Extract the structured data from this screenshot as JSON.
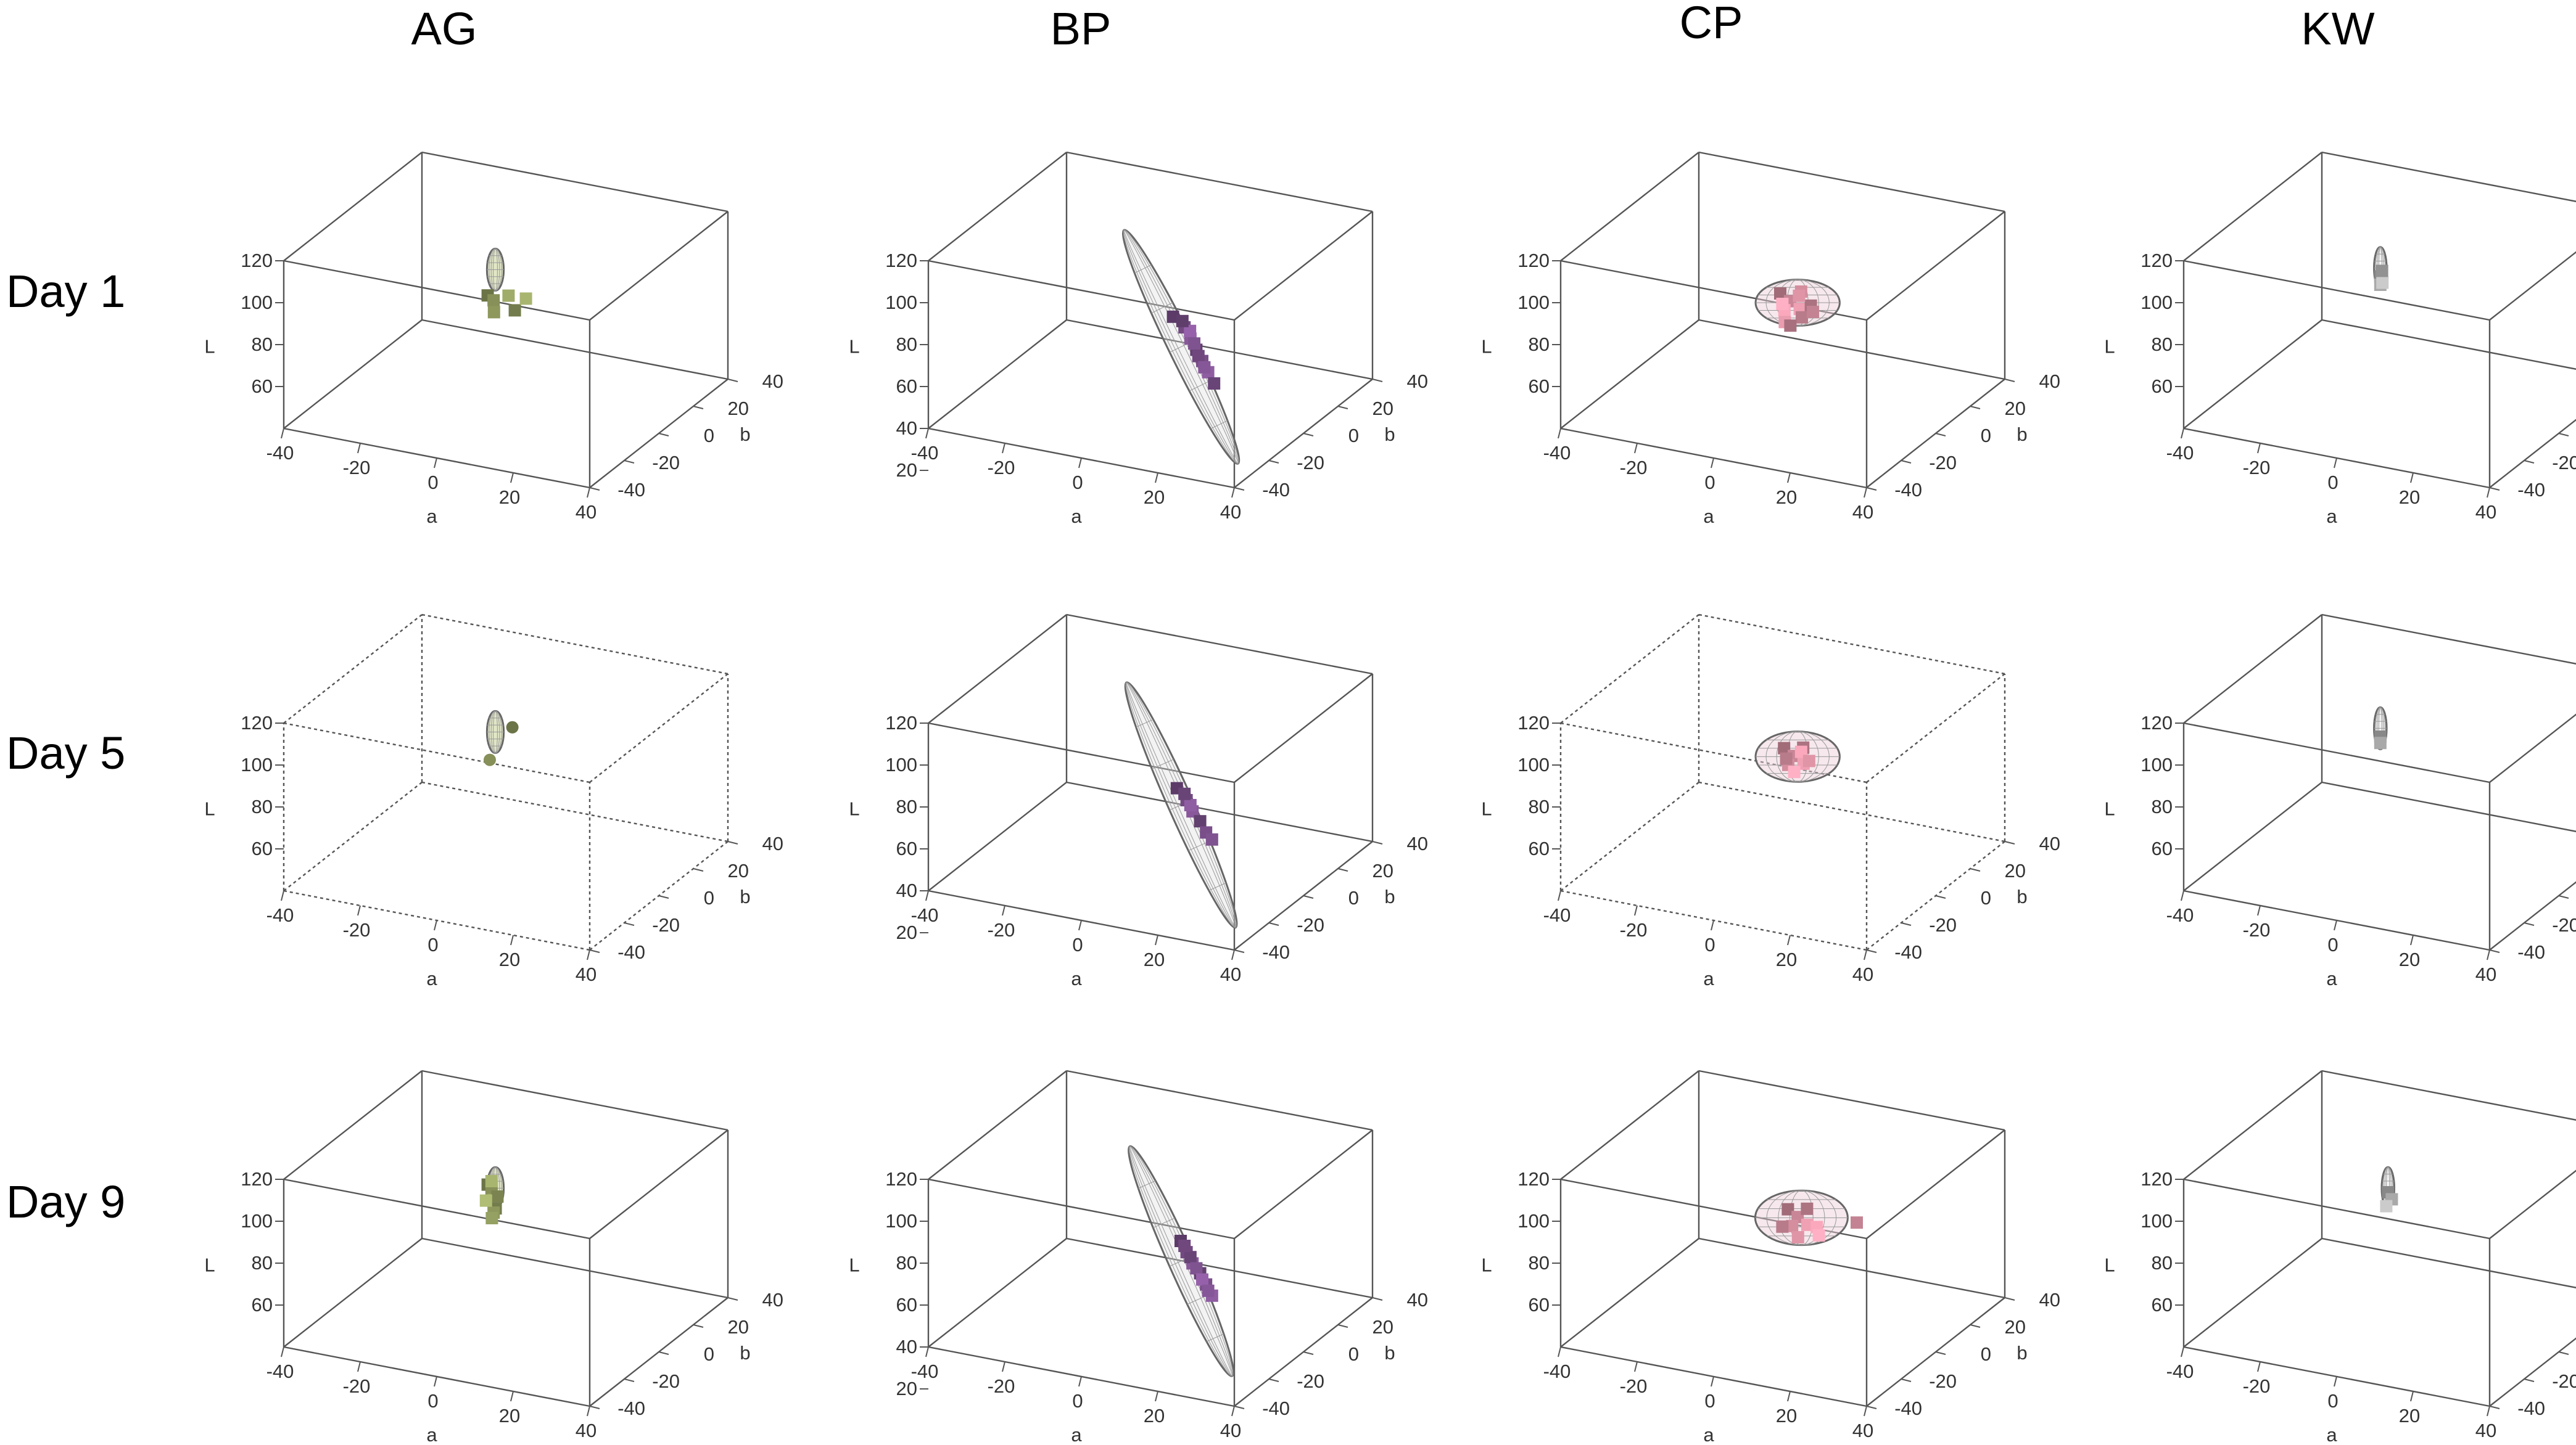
{
  "chart_data": {
    "type": "scatter3d",
    "title": "",
    "columns": [
      "AG",
      "BP",
      "CP",
      "KW"
    ],
    "rows": [
      "Day 1",
      "Day 5",
      "Day 9"
    ],
    "axes": {
      "x": {
        "label": "a",
        "ticks": [
          "-40",
          "-20",
          "0",
          "20",
          "40"
        ],
        "range": [
          -40,
          40
        ]
      },
      "y": {
        "label": "b",
        "ticks": [
          "-40",
          "-20",
          "0",
          "20",
          "40"
        ],
        "range": [
          -40,
          40
        ]
      },
      "z": {
        "label": "L",
        "ticks": [
          "60",
          "80",
          "100",
          "120"
        ],
        "range": [
          40,
          120
        ]
      },
      "z_ticks_bp": [
        "20",
        "40",
        "60",
        "80",
        "100",
        "120"
      ]
    },
    "panels": [
      {
        "col": "AG",
        "row": "Day 1",
        "color": "#8f9a5e",
        "ellipse": {
          "a": -5,
          "b": 5,
          "L": 99,
          "ra": 2,
          "rb": 2,
          "rL": 10,
          "tilt": 0
        },
        "points": [
          [
            -7,
            5,
            86
          ],
          [
            -5,
            4,
            85
          ],
          [
            -2,
            6,
            87
          ],
          [
            1,
            3,
            83
          ],
          [
            -4,
            2,
            81
          ],
          [
            3,
            5,
            88
          ]
        ]
      },
      {
        "col": "BP",
        "row": "Day 1",
        "color": "#7a4f8a",
        "ellipse": {
          "a": 8,
          "b": 0,
          "L": 70,
          "ra": 3,
          "rb": 3,
          "rL": 62,
          "tilt": -26
        },
        "points": [
          [
            5,
            2,
            82
          ],
          [
            8,
            2,
            78
          ],
          [
            10,
            1,
            74
          ],
          [
            12,
            0,
            70
          ],
          [
            14,
            -1,
            66
          ],
          [
            16,
            -2,
            62
          ],
          [
            18,
            -3,
            58
          ],
          [
            11,
            1,
            72
          ],
          [
            9,
            3,
            76
          ],
          [
            13,
            -1,
            68
          ],
          [
            15,
            -2,
            64
          ],
          [
            7,
            3,
            80
          ]
        ]
      },
      {
        "col": "CP",
        "row": "Day 1",
        "color": "#d68fa0",
        "ellipse": {
          "a": 3,
          "b": 2,
          "L": 88,
          "ra": 10,
          "rb": 9,
          "rL": 11,
          "tilt": 0
        },
        "points": [
          [
            -2,
            3,
            90
          ],
          [
            1,
            2,
            88
          ],
          [
            4,
            1,
            86
          ],
          [
            6,
            3,
            87
          ],
          [
            3,
            4,
            92
          ],
          [
            0,
            1,
            84
          ],
          [
            5,
            0,
            83
          ],
          [
            2,
            5,
            89
          ],
          [
            -1,
            2,
            86
          ],
          [
            7,
            2,
            85
          ],
          [
            1,
            -1,
            80
          ],
          [
            2,
            0,
            78
          ]
        ]
      },
      {
        "col": "KW",
        "row": "Day 1",
        "color": "#b5b5b5",
        "ellipse": {
          "a": -8,
          "b": 3,
          "L": 100,
          "ra": 1.5,
          "rb": 1.5,
          "rL": 10,
          "tilt": 0
        },
        "points": [
          [
            -8,
            3,
            96
          ],
          [
            -8,
            3,
            92
          ],
          [
            -7,
            2,
            94
          ],
          [
            -8,
            4,
            98
          ]
        ]
      },
      {
        "col": "AG",
        "row": "Day 5",
        "color": "#8f9a5e",
        "ellipse": {
          "a": -5,
          "b": 5,
          "L": 99,
          "ra": 2,
          "rb": 2,
          "rL": 10,
          "tilt": 0
        },
        "points": [
          [
            -1,
            6,
            102
          ],
          [
            -6,
            4,
            86
          ]
        ]
      },
      {
        "col": "BP",
        "row": "Day 5",
        "color": "#7a4f8a",
        "ellipse": {
          "a": 8,
          "b": 0,
          "L": 72,
          "ra": 3,
          "rb": 3,
          "rL": 64,
          "tilt": -24
        },
        "points": [
          [
            6,
            2,
            78
          ],
          [
            9,
            1,
            74
          ],
          [
            11,
            0,
            70
          ],
          [
            13,
            0,
            66
          ],
          [
            15,
            -1,
            62
          ],
          [
            10,
            1,
            72
          ],
          [
            8,
            2,
            76
          ],
          [
            17,
            -2,
            60
          ]
        ]
      },
      {
        "col": "CP",
        "row": "Day 5",
        "color": "#d68fa0",
        "ellipse": {
          "a": 3,
          "b": 2,
          "L": 92,
          "ra": 10,
          "rb": 9,
          "rL": 12,
          "tilt": 0
        },
        "points": [
          [
            -1,
            3,
            94
          ],
          [
            2,
            2,
            92
          ],
          [
            5,
            1,
            90
          ],
          [
            4,
            3,
            96
          ],
          [
            1,
            1,
            88
          ],
          [
            3,
            4,
            93
          ],
          [
            0,
            2,
            90
          ],
          [
            6,
            2,
            91
          ],
          [
            3,
            0,
            86
          ]
        ]
      },
      {
        "col": "KW",
        "row": "Day 5",
        "color": "#b5b5b5",
        "ellipse": {
          "a": -8,
          "b": 3,
          "L": 101,
          "ra": 1.5,
          "rb": 1.5,
          "rL": 10,
          "tilt": 0
        },
        "points": [
          [
            -8,
            3,
            97
          ],
          [
            -8,
            3,
            94
          ]
        ]
      },
      {
        "col": "AG",
        "row": "Day 9",
        "color": "#8f9a5e",
        "ellipse": {
          "a": -5,
          "b": 5,
          "L": 99,
          "ra": 2,
          "rb": 2,
          "rL": 10,
          "tilt": 0
        },
        "points": [
          [
            -7,
            5,
            100
          ],
          [
            -6,
            5,
            97
          ],
          [
            -5,
            4,
            94
          ],
          [
            -4,
            3,
            91
          ],
          [
            -5,
            4,
            88
          ],
          [
            -6,
            5,
            102
          ],
          [
            -4,
            4,
            96
          ],
          [
            -5,
            3,
            86
          ],
          [
            -7,
            4,
            93
          ]
        ]
      },
      {
        "col": "BP",
        "row": "Day 9",
        "color": "#7a4f8a",
        "ellipse": {
          "a": 8,
          "b": 0,
          "L": 72,
          "ra": 3,
          "rb": 3,
          "rL": 60,
          "tilt": -24
        },
        "points": [
          [
            7,
            2,
            80
          ],
          [
            9,
            1,
            76
          ],
          [
            11,
            0,
            72
          ],
          [
            13,
            0,
            68
          ],
          [
            15,
            -1,
            64
          ],
          [
            17,
            -2,
            60
          ],
          [
            10,
            1,
            74
          ],
          [
            12,
            0,
            70
          ],
          [
            14,
            -1,
            66
          ],
          [
            8,
            2,
            78
          ],
          [
            16,
            -2,
            62
          ]
        ]
      },
      {
        "col": "CP",
        "row": "Day 9",
        "color": "#d68fa0",
        "ellipse": {
          "a": 4,
          "b": 2,
          "L": 90,
          "ra": 11,
          "rb": 10,
          "rL": 13,
          "tilt": 0
        },
        "points": [
          [
            0,
            3,
            92
          ],
          [
            3,
            2,
            90
          ],
          [
            6,
            1,
            88
          ],
          [
            5,
            3,
            94
          ],
          [
            2,
            1,
            86
          ],
          [
            8,
            2,
            87
          ],
          [
            -1,
            2,
            84
          ],
          [
            4,
            0,
            82
          ],
          [
            9,
            1,
            84
          ],
          [
            18,
            3,
            92
          ]
        ]
      },
      {
        "col": "KW",
        "row": "Day 9",
        "color": "#b5b5b5",
        "ellipse": {
          "a": -6,
          "b": 3,
          "L": 100,
          "ra": 1.5,
          "rb": 1.5,
          "rL": 10,
          "tilt": 0
        },
        "points": [
          [
            -6,
            3,
            98
          ],
          [
            -5,
            3,
            95
          ],
          [
            -6,
            2,
            92
          ]
        ]
      }
    ]
  }
}
